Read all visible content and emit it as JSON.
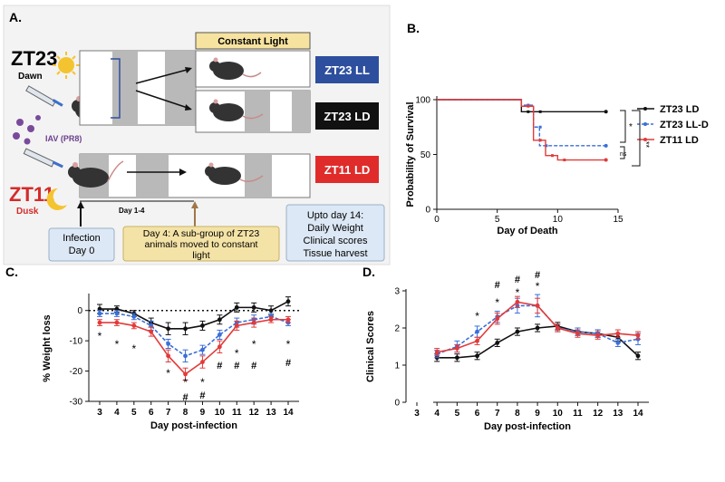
{
  "panelA": {
    "label": "A.",
    "dawn_title": "ZT23",
    "dawn_sub": "Dawn",
    "dusk_title": "ZT11",
    "dusk_sub": "Dusk",
    "virus": "IAV (PR8)",
    "constant_light": "Constant Light",
    "day_range": "Day 1-4",
    "cond_ll": "ZT23 LL",
    "cond_ld": "ZT23 LD",
    "cond_zt11": "ZT11 LD",
    "infection": "Infection\nDay 0",
    "day4": "Day 4: A sub-group of ZT23\nanimals moved to constant\nlight",
    "day14": "Upto day 14:\nDaily Weight\nClinical scores\nTissue harvest",
    "colors": {
      "ll": "#2e4f9e",
      "ld": "#111111",
      "zt11": "#d42b2b",
      "panel_bg": "#f3f3f3",
      "note_bg": "#f4e3a6",
      "note_bg2": "#dce8f5"
    }
  },
  "chart_data": [
    {
      "panel": "B.",
      "type": "line",
      "subtype": "step",
      "xlabel": "Day of Death",
      "ylabel": "Probability of Survival",
      "xlim": [
        0,
        15
      ],
      "ylim": [
        0,
        100
      ],
      "xticks": [
        "0",
        "5",
        "10",
        "15"
      ],
      "yticks": [
        "0",
        "50",
        "100"
      ],
      "series": [
        {
          "name": "ZT23 LD",
          "color": "#111111",
          "dashed": false,
          "x": [
            0,
            7,
            8,
            14
          ],
          "y": [
            100,
            89,
            89,
            89
          ]
        },
        {
          "name": "ZT23 LL-D",
          "color": "#3a6fd8",
          "dashed": true,
          "x": [
            0,
            7,
            8,
            8.5,
            14
          ],
          "y": [
            100,
            95,
            75,
            58,
            58
          ]
        },
        {
          "name": "ZT11 LD",
          "color": "#e23a3a",
          "dashed": false,
          "x": [
            0,
            7,
            8,
            9,
            10,
            14
          ],
          "y": [
            100,
            94,
            63,
            49,
            45,
            45
          ]
        }
      ],
      "annotations": [
        "*",
        "**",
        "ns"
      ]
    },
    {
      "panel": "C.",
      "type": "line",
      "xlabel": "Day post-infection",
      "ylabel": "% Weight loss",
      "ylim": [
        -30,
        5
      ],
      "yticks": [
        "0",
        "-10",
        "-20",
        "-30"
      ],
      "categories": [
        "3",
        "4",
        "5",
        "6",
        "7",
        "8",
        "9",
        "10",
        "11",
        "12",
        "13",
        "14"
      ],
      "series": [
        {
          "name": "ZT23 LD",
          "color": "#111111",
          "dashed": false,
          "values": [
            0.5,
            0.5,
            -1,
            -4,
            -6,
            -6,
            -5,
            -3,
            1,
            1,
            0,
            3
          ],
          "errors": [
            1.5,
            1,
            1,
            1.5,
            2,
            2,
            1.5,
            1.5,
            1.5,
            1.5,
            1.5,
            1.5
          ]
        },
        {
          "name": "ZT23 LL-D",
          "color": "#3a6fd8",
          "dashed": true,
          "values": [
            -1,
            -1,
            -2,
            -5,
            -11,
            -15,
            -13,
            -8,
            -4,
            -3,
            -2,
            -4
          ],
          "errors": [
            1,
            1,
            1,
            1.5,
            1.5,
            2,
            1.5,
            1.5,
            1.5,
            1.5,
            1,
            1
          ]
        },
        {
          "name": "ZT11 LD",
          "color": "#e23a3a",
          "dashed": false,
          "values": [
            -4,
            -4,
            -5,
            -7,
            -15,
            -21,
            -17,
            -12,
            -5,
            -4,
            -3,
            -3
          ],
          "errors": [
            1,
            1,
            1,
            1.5,
            2,
            2,
            2,
            2,
            1.5,
            1.5,
            1,
            1
          ]
        }
      ],
      "annotations": [
        "*",
        "#"
      ]
    },
    {
      "panel": "D.",
      "type": "line",
      "xlabel": "Day post-infection",
      "ylabel": "Clinical  Scores",
      "ylim": [
        0,
        3
      ],
      "yticks": [
        "0",
        "1",
        "2",
        "3"
      ],
      "categories": [
        "3",
        "4",
        "5",
        "6",
        "7",
        "8",
        "9",
        "10",
        "11",
        "12",
        "13",
        "14"
      ],
      "series": [
        {
          "name": "ZT23 LD",
          "color": "#111111",
          "dashed": false,
          "values": [
            null,
            1.2,
            1.2,
            1.25,
            1.6,
            1.9,
            2.0,
            2.05,
            1.9,
            1.85,
            1.75,
            1.25
          ],
          "errors": [
            0,
            0.1,
            0.1,
            0.1,
            0.1,
            0.1,
            0.1,
            0.1,
            0.1,
            0.1,
            0.1,
            0.1
          ]
        },
        {
          "name": "ZT23 LL-D",
          "color": "#3a6fd8",
          "dashed": true,
          "values": [
            null,
            1.3,
            1.5,
            1.9,
            2.3,
            2.6,
            2.6,
            2.0,
            1.9,
            1.85,
            1.6,
            1.7
          ],
          "errors": [
            0,
            0.1,
            0.15,
            0.15,
            0.15,
            0.2,
            0.3,
            0.1,
            0.1,
            0.1,
            0.1,
            0.15
          ]
        },
        {
          "name": "ZT11 LD",
          "color": "#e23a3a",
          "dashed": false,
          "values": [
            null,
            1.35,
            1.45,
            1.65,
            2.25,
            2.7,
            2.6,
            2.0,
            1.85,
            1.8,
            1.85,
            1.8
          ],
          "errors": [
            0,
            0.1,
            0.1,
            0.1,
            0.15,
            0.15,
            0.2,
            0.1,
            0.1,
            0.1,
            0.1,
            0.1
          ]
        }
      ],
      "annotations": [
        "*",
        "#"
      ]
    }
  ]
}
